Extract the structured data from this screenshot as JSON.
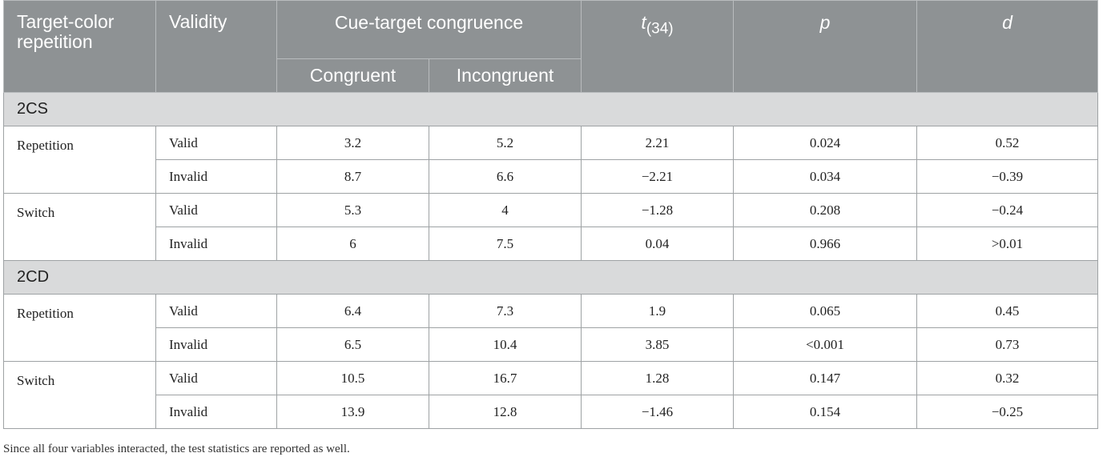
{
  "headers": {
    "target_color_repetition": "Target-color repetition",
    "validity": "Validity",
    "cue_target_congruence": "Cue-target congruence",
    "congruent": "Congruent",
    "incongruent": "Incongruent",
    "t_symbol": "t",
    "t_subscript": "(34)",
    "p": "p",
    "d": "d"
  },
  "sections": [
    {
      "label": "2CS",
      "groups": [
        {
          "condition": "Repetition",
          "rows": [
            {
              "validity": "Valid",
              "congruent": "3.2",
              "incongruent": "5.2",
              "t": "2.21",
              "p": "0.024",
              "d": "0.52"
            },
            {
              "validity": "Invalid",
              "congruent": "8.7",
              "incongruent": "6.6",
              "t": "−2.21",
              "p": "0.034",
              "d": "−0.39"
            }
          ]
        },
        {
          "condition": "Switch",
          "rows": [
            {
              "validity": "Valid",
              "congruent": "5.3",
              "incongruent": "4",
              "t": "−1.28",
              "p": "0.208",
              "d": "−0.24"
            },
            {
              "validity": "Invalid",
              "congruent": "6",
              "incongruent": "7.5",
              "t": "0.04",
              "p": "0.966",
              "d": ">0.01"
            }
          ]
        }
      ]
    },
    {
      "label": "2CD",
      "groups": [
        {
          "condition": "Repetition",
          "rows": [
            {
              "validity": "Valid",
              "congruent": "6.4",
              "incongruent": "7.3",
              "t": "1.9",
              "p": "0.065",
              "d": "0.45"
            },
            {
              "validity": "Invalid",
              "congruent": "6.5",
              "incongruent": "10.4",
              "t": "3.85",
              "p": "<0.001",
              "d": "0.73"
            }
          ]
        },
        {
          "condition": "Switch",
          "rows": [
            {
              "validity": "Valid",
              "congruent": "10.5",
              "incongruent": "16.7",
              "t": "1.28",
              "p": "0.147",
              "d": "0.32"
            },
            {
              "validity": "Invalid",
              "congruent": "13.9",
              "incongruent": "12.8",
              "t": "−1.46",
              "p": "0.154",
              "d": "−0.25"
            }
          ]
        }
      ]
    }
  ],
  "footnote": "Since all four variables interacted, the test statistics are reported as well.",
  "colors": {
    "header_bg": "#8e9294",
    "section_bg": "#d9dadb"
  }
}
